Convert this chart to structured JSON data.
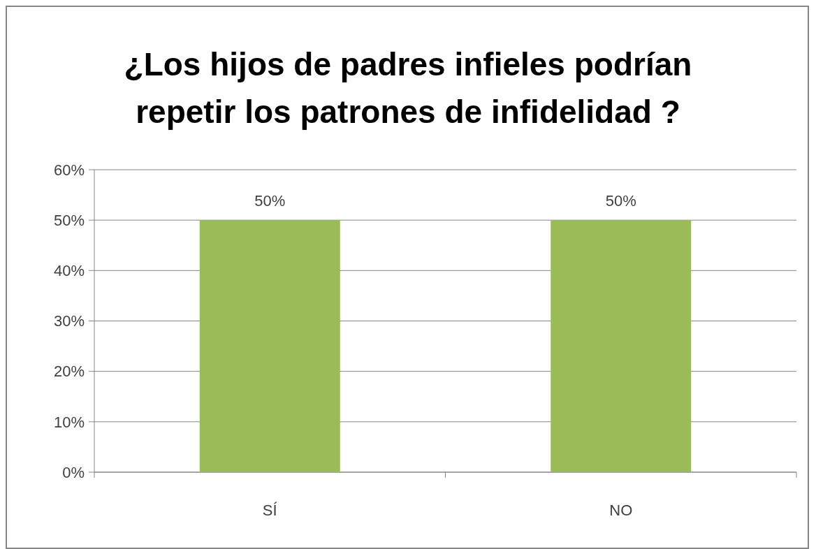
{
  "chart_data": {
    "type": "bar",
    "title": "¿Los hijos de padres infieles podrían repetir los patrones de infidelidad ?",
    "categories": [
      "SÍ",
      "NO"
    ],
    "values": [
      50,
      50
    ],
    "value_labels": [
      "50%",
      "50%"
    ],
    "color": "#9bbb59",
    "ylim": [
      0,
      60
    ],
    "yticks": [
      {
        "value": 0,
        "label": "0%"
      },
      {
        "value": 10,
        "label": "10%"
      },
      {
        "value": 20,
        "label": "20%"
      },
      {
        "value": 30,
        "label": "30%"
      },
      {
        "value": 40,
        "label": "40%"
      },
      {
        "value": 50,
        "label": "50%"
      },
      {
        "value": 60,
        "label": "60%"
      }
    ],
    "grid": "y"
  }
}
